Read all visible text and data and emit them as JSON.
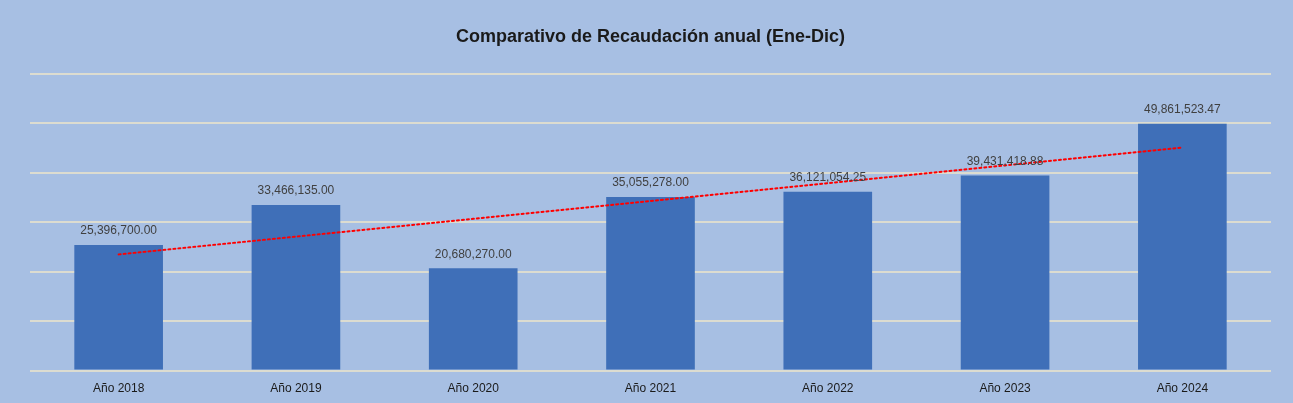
{
  "chart_data": {
    "type": "bar",
    "title": "Comparativo de Recaudación anual (Ene-Dic)",
    "categories": [
      "Año 2018",
      "Año 2019",
      "Año 2020",
      "Año 2021",
      "Año 2022",
      "Año 2023",
      "Año 2024"
    ],
    "series": [
      {
        "color": "#3f6fb8",
        "values": [
          25396700.0,
          33466135.0,
          20680270.0,
          35055278.0,
          36121054.25,
          39431418.88,
          49861523.47
        ],
        "value_labels": [
          "25,396,700.00",
          "33,466,135.00",
          "20,680,270.00",
          "35,055,278.00",
          "36,121,054.25",
          "39,431,418.88",
          "49,861,523.47"
        ]
      },
      {
        "type": "line",
        "color": "#ff0000",
        "line_style": "dotted",
        "marker": "none",
        "x": [
          "Año 2018",
          "Año 2019",
          "Año 2020",
          "Año 2021",
          "Año 2022",
          "Año 2023",
          "Año 2024"
        ],
        "values": [
          23480000,
          27080000,
          30670000,
          34270000,
          37870000,
          41470000,
          45070000
        ]
      }
    ],
    "ylim": [
      0,
      60000000
    ],
    "yticks": [
      {
        "value": 0,
        "label": null
      },
      {
        "value": 10000000,
        "label": null
      },
      {
        "value": 20000000,
        "label": null
      },
      {
        "value": 30000000,
        "label": null
      },
      {
        "value": 40000000,
        "label": null
      },
      {
        "value": 50000000,
        "label": null
      },
      {
        "value": 60000000,
        "label": null
      }
    ],
    "grid": "y",
    "tick_labels": "x",
    "legend": false
  }
}
